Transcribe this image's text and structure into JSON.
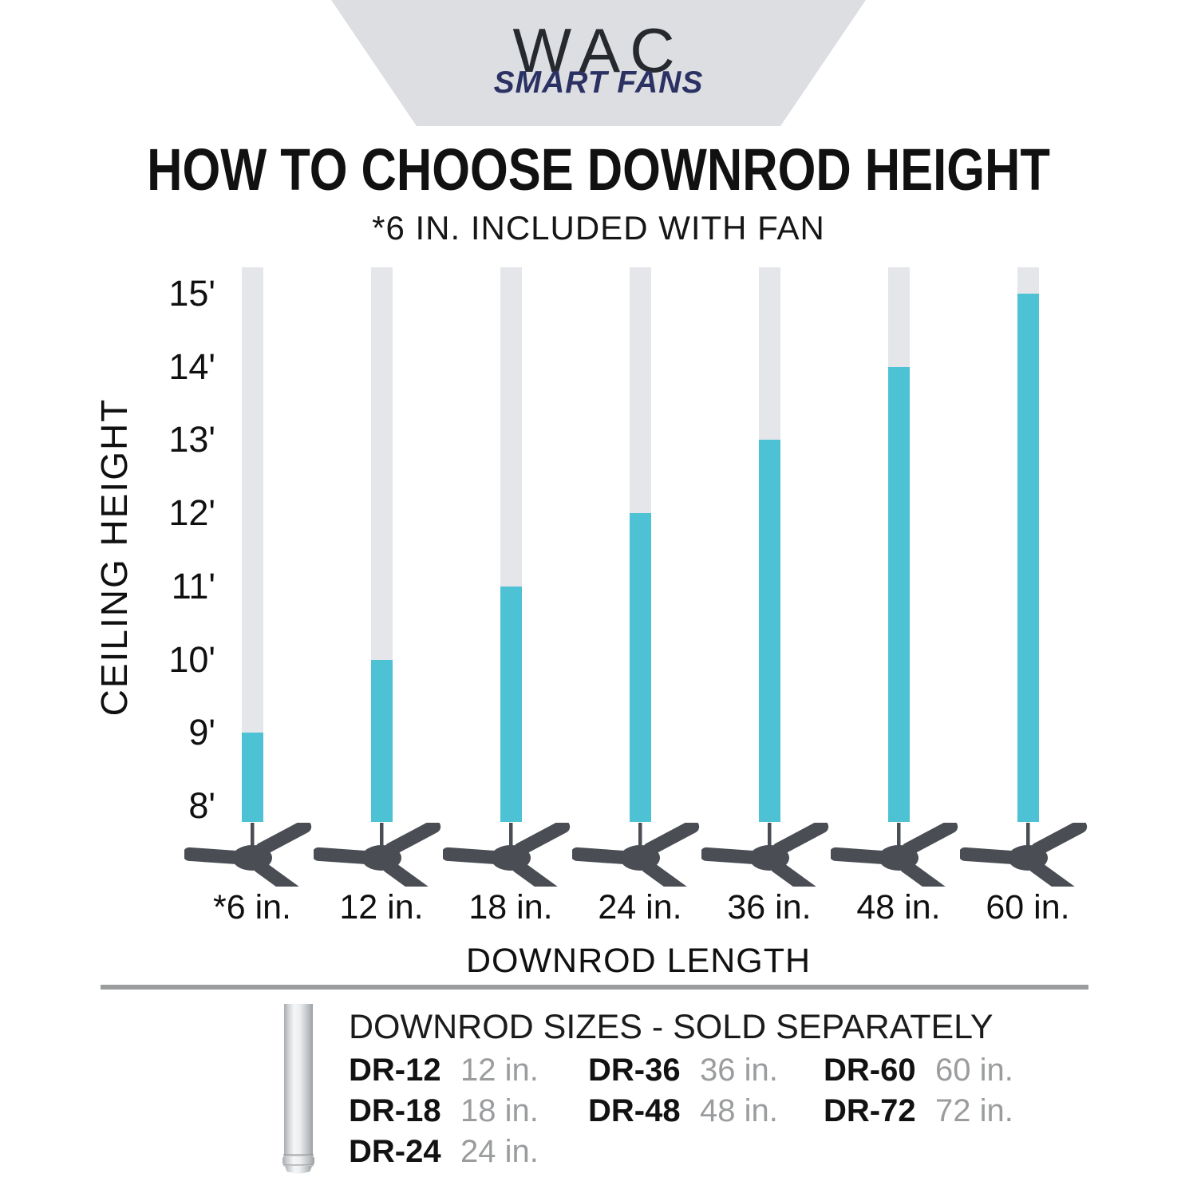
{
  "header": {
    "brand": "WAC",
    "brand_sub": "SMART FANS"
  },
  "chart_data": {
    "type": "bar",
    "title": "HOW TO CHOOSE DOWNROD HEIGHT",
    "subtitle": "*6 IN. INCLUDED WITH FAN",
    "xlabel": "DOWNROD LENGTH",
    "ylabel": "CEILING HEIGHT",
    "categories": [
      "*6 in.",
      "12 in.",
      "18 in.",
      "24 in.",
      "36 in.",
      "48 in.",
      "60 in."
    ],
    "series": [
      {
        "name": "Recommended ceiling height (ft)",
        "values": [
          9,
          10,
          11,
          12,
          13,
          14,
          15
        ]
      }
    ],
    "yticks": [
      {
        "label": "15'",
        "ft": 15
      },
      {
        "label": "14'",
        "ft": 14
      },
      {
        "label": "13'",
        "ft": 13
      },
      {
        "label": "12'",
        "ft": 12
      },
      {
        "label": "11'",
        "ft": 11
      },
      {
        "label": "10'",
        "ft": 10
      },
      {
        "label": "9'",
        "ft": 9
      },
      {
        "label": "8'",
        "ft": 8
      }
    ],
    "ylim": [
      8,
      15
    ],
    "grid": false,
    "legend": "none",
    "colors": {
      "bar_fill": "#4dc2d4",
      "bar_track": "#e4e6ea",
      "fan": "#4a4e54"
    }
  },
  "footer": {
    "heading": "DOWNROD SIZES - SOLD SEPARATELY",
    "columns": [
      [
        {
          "model": "DR-12",
          "size": "12 in."
        },
        {
          "model": "DR-18",
          "size": "18 in."
        },
        {
          "model": "DR-24",
          "size": "24 in."
        }
      ],
      [
        {
          "model": "DR-36",
          "size": "36 in."
        },
        {
          "model": "DR-48",
          "size": "48 in."
        }
      ],
      [
        {
          "model": "DR-60",
          "size": "60 in."
        },
        {
          "model": "DR-72",
          "size": "72 in."
        }
      ]
    ]
  }
}
